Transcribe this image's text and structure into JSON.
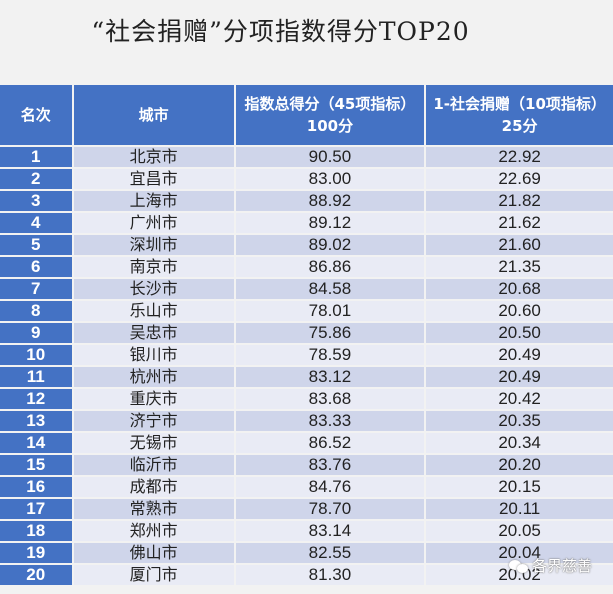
{
  "title": "“社会捐赠”分项指数得分TOP20",
  "table": {
    "headers": [
      "名次",
      "城市",
      "指数总得分（45项指标）100分",
      "1-社会捐赠（10项指标）25分"
    ],
    "rows": [
      {
        "rank": "1",
        "city": "北京市",
        "total": "90.50",
        "donation": "22.92"
      },
      {
        "rank": "2",
        "city": "宜昌市",
        "total": "83.00",
        "donation": "22.69"
      },
      {
        "rank": "3",
        "city": "上海市",
        "total": "88.92",
        "donation": "21.82"
      },
      {
        "rank": "4",
        "city": "广州市",
        "total": "89.12",
        "donation": "21.62"
      },
      {
        "rank": "5",
        "city": "深圳市",
        "total": "89.02",
        "donation": "21.60"
      },
      {
        "rank": "6",
        "city": "南京市",
        "total": "86.86",
        "donation": "21.35"
      },
      {
        "rank": "7",
        "city": "长沙市",
        "total": "84.58",
        "donation": "20.68"
      },
      {
        "rank": "8",
        "city": "乐山市",
        "total": "78.01",
        "donation": "20.60"
      },
      {
        "rank": "9",
        "city": "吴忠市",
        "total": "75.86",
        "donation": "20.50"
      },
      {
        "rank": "10",
        "city": "银川市",
        "total": "78.59",
        "donation": "20.49"
      },
      {
        "rank": "11",
        "city": "杭州市",
        "total": "83.12",
        "donation": "20.49"
      },
      {
        "rank": "12",
        "city": "重庆市",
        "total": "83.68",
        "donation": "20.42"
      },
      {
        "rank": "13",
        "city": "济宁市",
        "total": "83.33",
        "donation": "20.35"
      },
      {
        "rank": "14",
        "city": "无锡市",
        "total": "86.52",
        "donation": "20.34"
      },
      {
        "rank": "15",
        "city": "临沂市",
        "total": "83.76",
        "donation": "20.20"
      },
      {
        "rank": "16",
        "city": "成都市",
        "total": "84.76",
        "donation": "20.15"
      },
      {
        "rank": "17",
        "city": "常熟市",
        "total": "78.70",
        "donation": "20.11"
      },
      {
        "rank": "18",
        "city": "郑州市",
        "total": "83.14",
        "donation": "20.05"
      },
      {
        "rank": "19",
        "city": "佛山市",
        "total": "82.55",
        "donation": "20.04"
      },
      {
        "rank": "20",
        "city": "厦门市",
        "total": "81.30",
        "donation": "20.02"
      }
    ]
  },
  "watermark": {
    "icon": "wechat-icon",
    "text": "各界慈善"
  },
  "colors": {
    "header_bg": "#4472c4",
    "row_odd": "#cfd5ea",
    "row_even": "#e9ebf5",
    "page_bg": "#f2f2f2"
  }
}
